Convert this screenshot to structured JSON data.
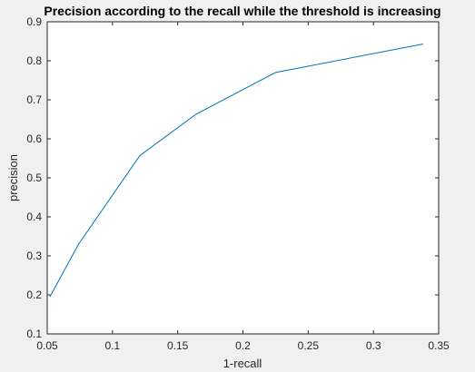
{
  "chart_data": {
    "type": "line",
    "title": "Precision according to the recall while the threshold is increasing",
    "xlabel": "1-recall",
    "ylabel": "precision",
    "xlim": [
      0.05,
      0.35
    ],
    "ylim": [
      0.1,
      0.9
    ],
    "xticks": [
      "0.05",
      "0.1",
      "0.15",
      "0.2",
      "0.25",
      "0.3",
      "0.35"
    ],
    "yticks": [
      "0.1",
      "0.2",
      "0.3",
      "0.4",
      "0.5",
      "0.6",
      "0.7",
      "0.8",
      "0.9"
    ],
    "grid": false,
    "series": [
      {
        "color": "#0072bd",
        "x": [
          0.052,
          0.074,
          0.121,
          0.164,
          0.225,
          0.338
        ],
        "y": [
          0.195,
          0.33,
          0.557,
          0.663,
          0.77,
          0.843
        ]
      }
    ]
  },
  "colors": {
    "figure_background": "#f0f0f0",
    "axes_background": "#ffffff",
    "axes_edge": "#262626",
    "line": "#0072bd"
  }
}
